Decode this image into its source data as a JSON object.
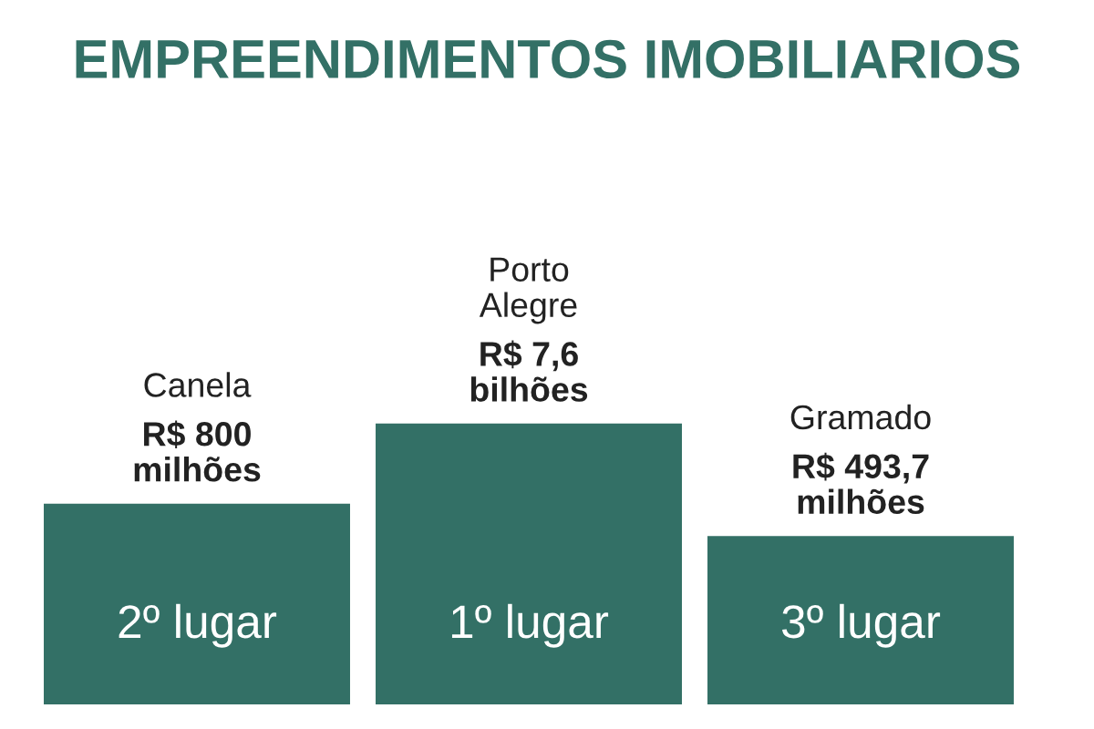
{
  "chart_data": {
    "type": "other",
    "title": "EMPREENDIMENTOS IMOBILIARIOS",
    "categories": [
      "Canela",
      "Porto Alegre",
      "Gramado"
    ],
    "values": [
      2,
      1,
      3
    ],
    "value_labels": [
      "2º lugar",
      "1º lugar",
      "3º lugar"
    ],
    "color": "#337066",
    "annotations": [
      {
        "text": "R$ 800 milhões",
        "x": "Canela"
      },
      {
        "text": "R$ 7,6 bilhões",
        "x": "Porto Alegre"
      },
      {
        "text": "R$ 493,7 milhões",
        "x": "Gramado"
      }
    ]
  }
}
